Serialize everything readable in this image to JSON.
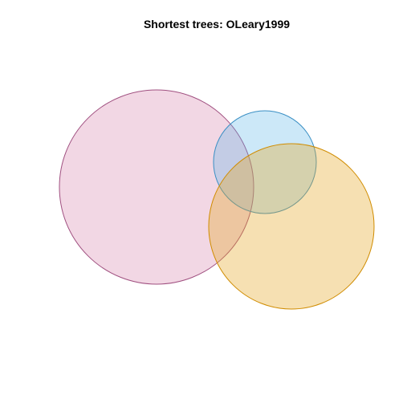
{
  "figure": {
    "title": "Shortest trees: OLeary1999"
  },
  "venn": {
    "sets": [
      {
        "fill": "#d98cb3",
        "stroke": "#a05080",
        "fill_opacity": 0.35
      },
      {
        "fill": "#56b4e9",
        "stroke": "#3a8fc4",
        "fill_opacity": 0.3
      },
      {
        "fill": "#e6a522",
        "stroke": "#d08c00",
        "fill_opacity": 0.35
      }
    ]
  }
}
